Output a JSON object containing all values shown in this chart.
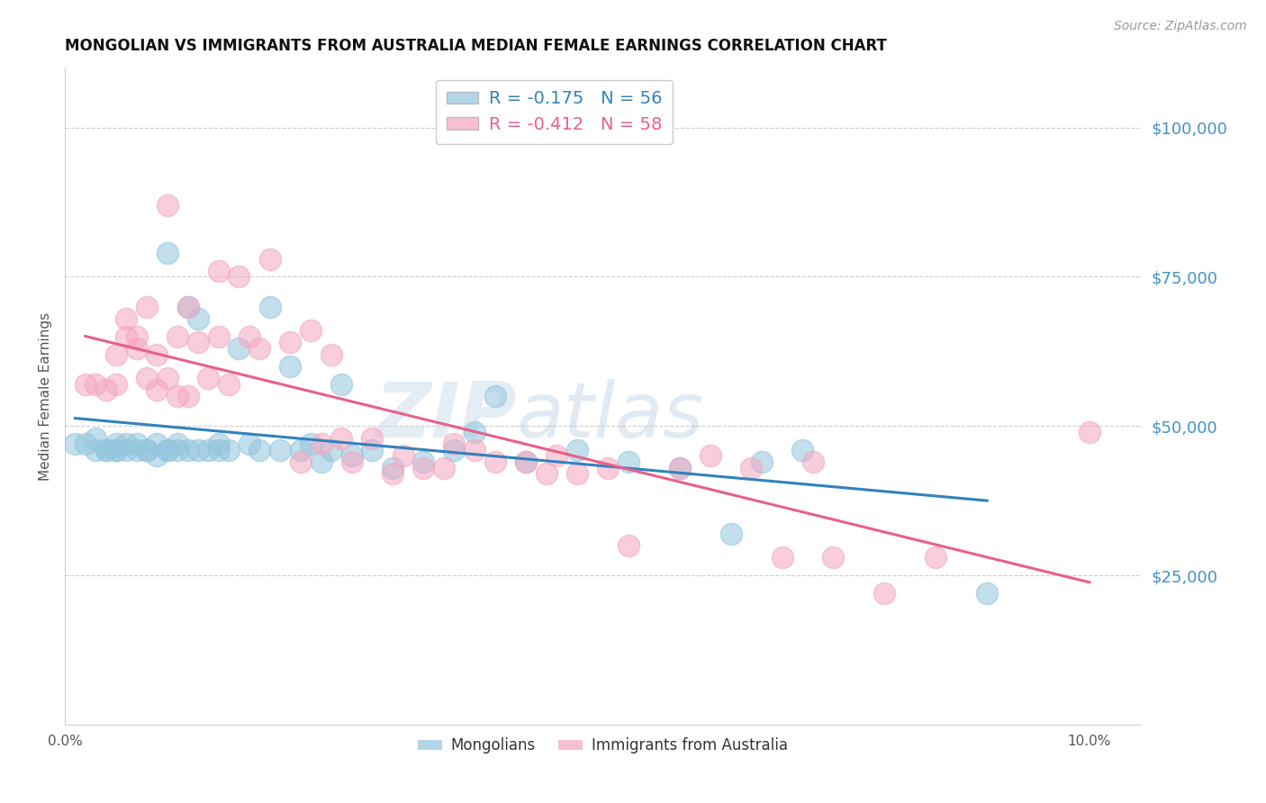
{
  "title": "MONGOLIAN VS IMMIGRANTS FROM AUSTRALIA MEDIAN FEMALE EARNINGS CORRELATION CHART",
  "source": "Source: ZipAtlas.com",
  "ylabel": "Median Female Earnings",
  "right_ytick_labels": [
    "$25,000",
    "$50,000",
    "$75,000",
    "$100,000"
  ],
  "right_ytick_values": [
    25000,
    50000,
    75000,
    100000
  ],
  "legend_blue_label": "R = -0.175   N = 56",
  "legend_pink_label": "R = -0.412   N = 58",
  "blue_color": "#92c5de",
  "pink_color": "#f4a6c0",
  "blue_line_color": "#3182bd",
  "pink_line_color": "#e8608a",
  "right_label_color": "#4292c6",
  "watermark_zip": "ZIP",
  "watermark_atlas": "atlas",
  "xlim": [
    0.0,
    0.105
  ],
  "ylim": [
    0,
    110000
  ],
  "blue_scatter_x": [
    0.001,
    0.002,
    0.003,
    0.003,
    0.004,
    0.004,
    0.005,
    0.005,
    0.005,
    0.006,
    0.006,
    0.007,
    0.007,
    0.008,
    0.008,
    0.009,
    0.009,
    0.01,
    0.01,
    0.01,
    0.011,
    0.011,
    0.012,
    0.012,
    0.013,
    0.013,
    0.014,
    0.015,
    0.015,
    0.016,
    0.017,
    0.018,
    0.019,
    0.02,
    0.021,
    0.022,
    0.023,
    0.024,
    0.025,
    0.026,
    0.027,
    0.028,
    0.03,
    0.032,
    0.035,
    0.038,
    0.04,
    0.042,
    0.045,
    0.05,
    0.055,
    0.06,
    0.065,
    0.068,
    0.072,
    0.09
  ],
  "blue_scatter_y": [
    47000,
    47000,
    46000,
    48000,
    46000,
    46000,
    46000,
    47000,
    46000,
    47000,
    46000,
    46000,
    47000,
    46000,
    46000,
    45000,
    47000,
    46000,
    46000,
    79000,
    47000,
    46000,
    46000,
    70000,
    46000,
    68000,
    46000,
    47000,
    46000,
    46000,
    63000,
    47000,
    46000,
    70000,
    46000,
    60000,
    46000,
    47000,
    44000,
    46000,
    57000,
    45000,
    46000,
    43000,
    44000,
    46000,
    49000,
    55000,
    44000,
    46000,
    44000,
    43000,
    32000,
    44000,
    46000,
    22000
  ],
  "pink_scatter_x": [
    0.002,
    0.003,
    0.004,
    0.005,
    0.005,
    0.006,
    0.006,
    0.007,
    0.007,
    0.008,
    0.008,
    0.009,
    0.009,
    0.01,
    0.01,
    0.011,
    0.011,
    0.012,
    0.012,
    0.013,
    0.014,
    0.015,
    0.015,
    0.016,
    0.017,
    0.018,
    0.019,
    0.02,
    0.022,
    0.023,
    0.024,
    0.025,
    0.026,
    0.027,
    0.028,
    0.03,
    0.032,
    0.033,
    0.035,
    0.037,
    0.038,
    0.04,
    0.042,
    0.045,
    0.047,
    0.048,
    0.05,
    0.053,
    0.055,
    0.06,
    0.063,
    0.067,
    0.07,
    0.073,
    0.075,
    0.08,
    0.085,
    0.1
  ],
  "pink_scatter_y": [
    57000,
    57000,
    56000,
    57000,
    62000,
    65000,
    68000,
    65000,
    63000,
    70000,
    58000,
    62000,
    56000,
    58000,
    87000,
    55000,
    65000,
    55000,
    70000,
    64000,
    58000,
    76000,
    65000,
    57000,
    75000,
    65000,
    63000,
    78000,
    64000,
    44000,
    66000,
    47000,
    62000,
    48000,
    44000,
    48000,
    42000,
    45000,
    43000,
    43000,
    47000,
    46000,
    44000,
    44000,
    42000,
    45000,
    42000,
    43000,
    30000,
    43000,
    45000,
    43000,
    28000,
    44000,
    28000,
    22000,
    28000,
    49000
  ]
}
